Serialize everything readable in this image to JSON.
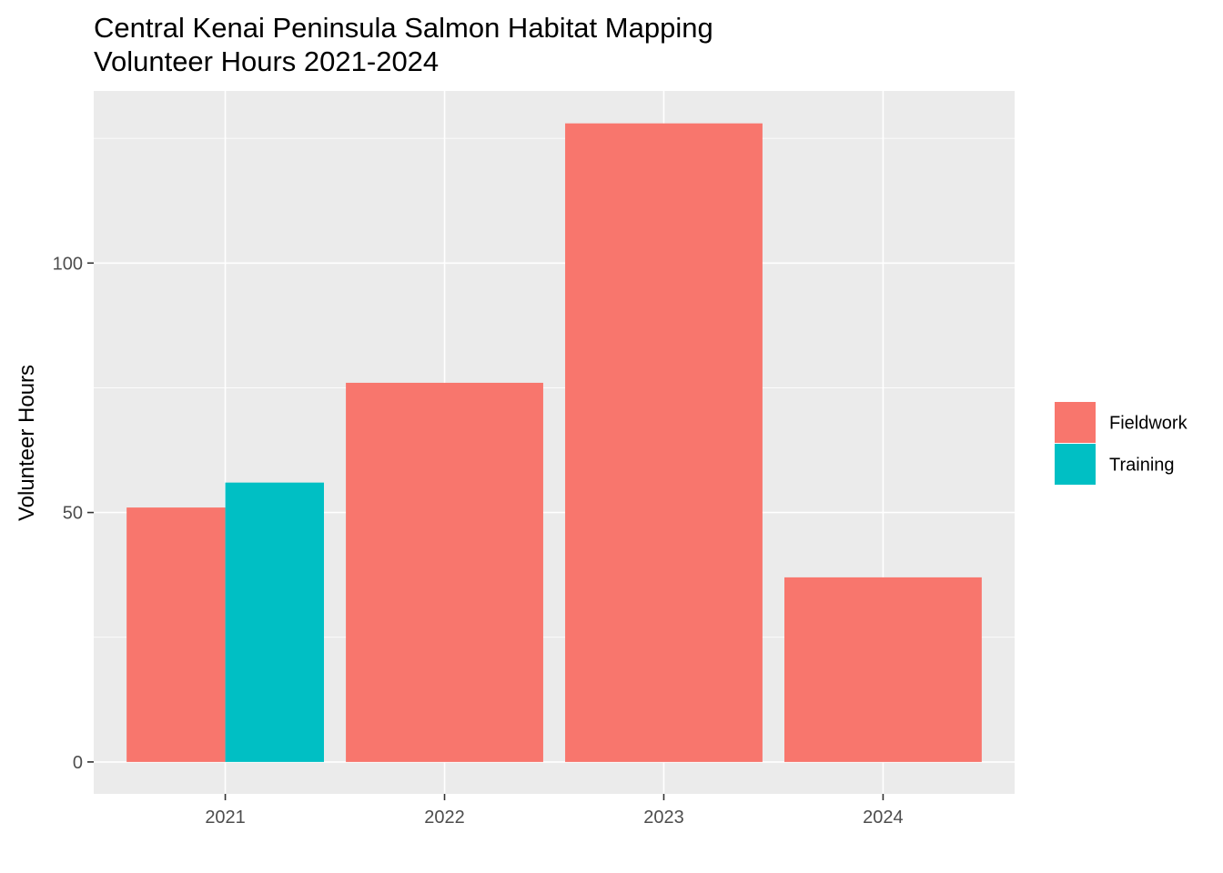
{
  "chart_data": {
    "type": "bar",
    "title_line1": "Central Kenai Peninsula Salmon Habitat Mapping",
    "title_line2": "Volunteer Hours 2021-2024",
    "xlabel": "",
    "ylabel": "Volunteer Hours",
    "categories": [
      "2021",
      "2022",
      "2023",
      "2024"
    ],
    "ylim": [
      -6.4,
      134.5
    ],
    "yticks": [
      0,
      50,
      100
    ],
    "ytick_labels": [
      "0",
      "50",
      "100"
    ],
    "grid": true,
    "legend_position": "right",
    "series": [
      {
        "name": "Fieldwork",
        "color": "#F8766D",
        "values": [
          51,
          76,
          128,
          37
        ]
      },
      {
        "name": "Training",
        "color": "#00BFC4",
        "values": [
          56,
          null,
          null,
          null
        ]
      }
    ],
    "panel_background": "#EBEBEB",
    "grid_color": "#FFFFFF",
    "tick_color": "#333333"
  }
}
